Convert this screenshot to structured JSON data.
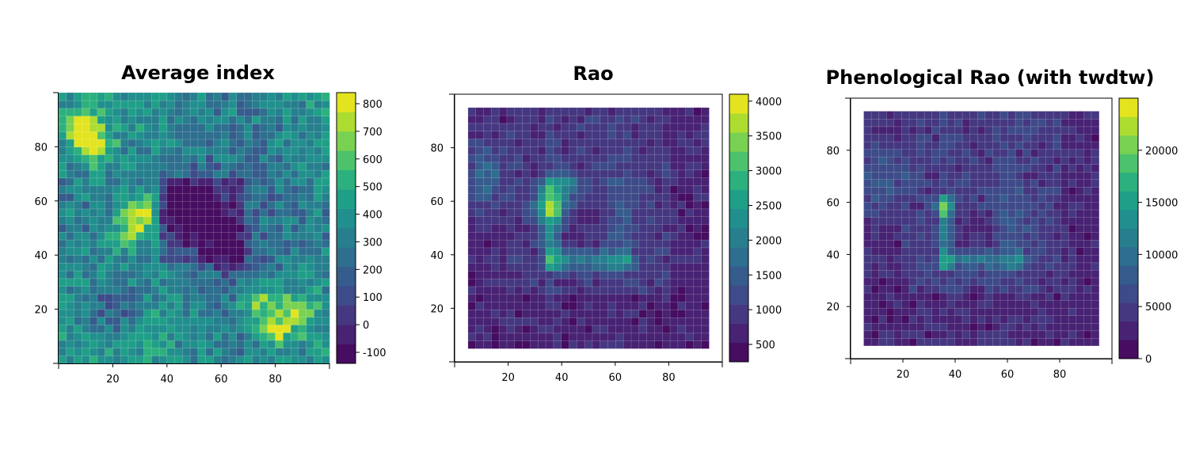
{
  "chart_data": [
    {
      "type": "heatmap",
      "title": "Average index",
      "xlabel": "",
      "ylabel": "",
      "xlim": [
        0,
        100
      ],
      "ylim": [
        0,
        100
      ],
      "xticks": [
        20,
        40,
        60,
        80
      ],
      "yticks": [
        20,
        40,
        60,
        80
      ],
      "grid_extent": [
        0,
        100
      ],
      "grid_size": 35,
      "zlim": [
        -140,
        840
      ],
      "colorbar_ticks": [
        -100,
        0,
        100,
        200,
        300,
        400,
        500,
        600,
        700,
        800
      ],
      "colorbar_levels": 14,
      "pattern": "noise",
      "value_range_description_hot_spots": [
        [
          8,
          88,
          820
        ],
        [
          12,
          80,
          760
        ],
        [
          32,
          57,
          740
        ],
        [
          27,
          50,
          680
        ],
        [
          88,
          20,
          720
        ],
        [
          80,
          12,
          700
        ],
        [
          74,
          22,
          680
        ]
      ],
      "value_range_description_cold_spots": [
        [
          52,
          55,
          -120
        ],
        [
          45,
          60,
          0
        ],
        [
          62,
          43,
          40
        ],
        [
          20,
          20,
          100
        ]
      ]
    },
    {
      "type": "heatmap",
      "title": "Rao",
      "xlabel": "",
      "ylabel": "",
      "xlim": [
        0,
        100
      ],
      "ylim": [
        0,
        100
      ],
      "xticks": [
        20,
        40,
        60,
        80
      ],
      "yticks": [
        20,
        40,
        60,
        80
      ],
      "grid_extent": [
        5,
        95
      ],
      "grid_size": 31,
      "zlim": [
        250,
        4100
      ],
      "colorbar_ticks": [
        500,
        1000,
        1500,
        2000,
        2500,
        3000,
        3500,
        4000
      ],
      "colorbar_levels": 14,
      "pattern": "ring",
      "peak_value": 4000,
      "background_value": 900
    },
    {
      "type": "heatmap",
      "title": "Phenological Rao (with twdtw)",
      "xlabel": "",
      "ylabel": "",
      "xlim": [
        0,
        100
      ],
      "ylim": [
        0,
        100
      ],
      "xticks": [
        20,
        40,
        60,
        80
      ],
      "yticks": [
        20,
        40,
        60,
        80
      ],
      "grid_extent": [
        5,
        95
      ],
      "grid_size": 31,
      "zlim": [
        0,
        25000
      ],
      "colorbar_ticks": [
        0,
        5000,
        10000,
        15000,
        20000
      ],
      "colorbar_levels": 14,
      "pattern": "ring-narrow",
      "peak_value": 24000,
      "background_value": 4500
    }
  ],
  "colors": {
    "viridis": [
      "#440154",
      "#481467",
      "#482576",
      "#453781",
      "#3f4788",
      "#39558c",
      "#32648e",
      "#2c728e",
      "#26808e",
      "#218e8d",
      "#1f9a8a",
      "#22a884",
      "#35b779",
      "#54c568",
      "#7ad151",
      "#a5db36",
      "#d2e21b",
      "#fde725"
    ]
  }
}
